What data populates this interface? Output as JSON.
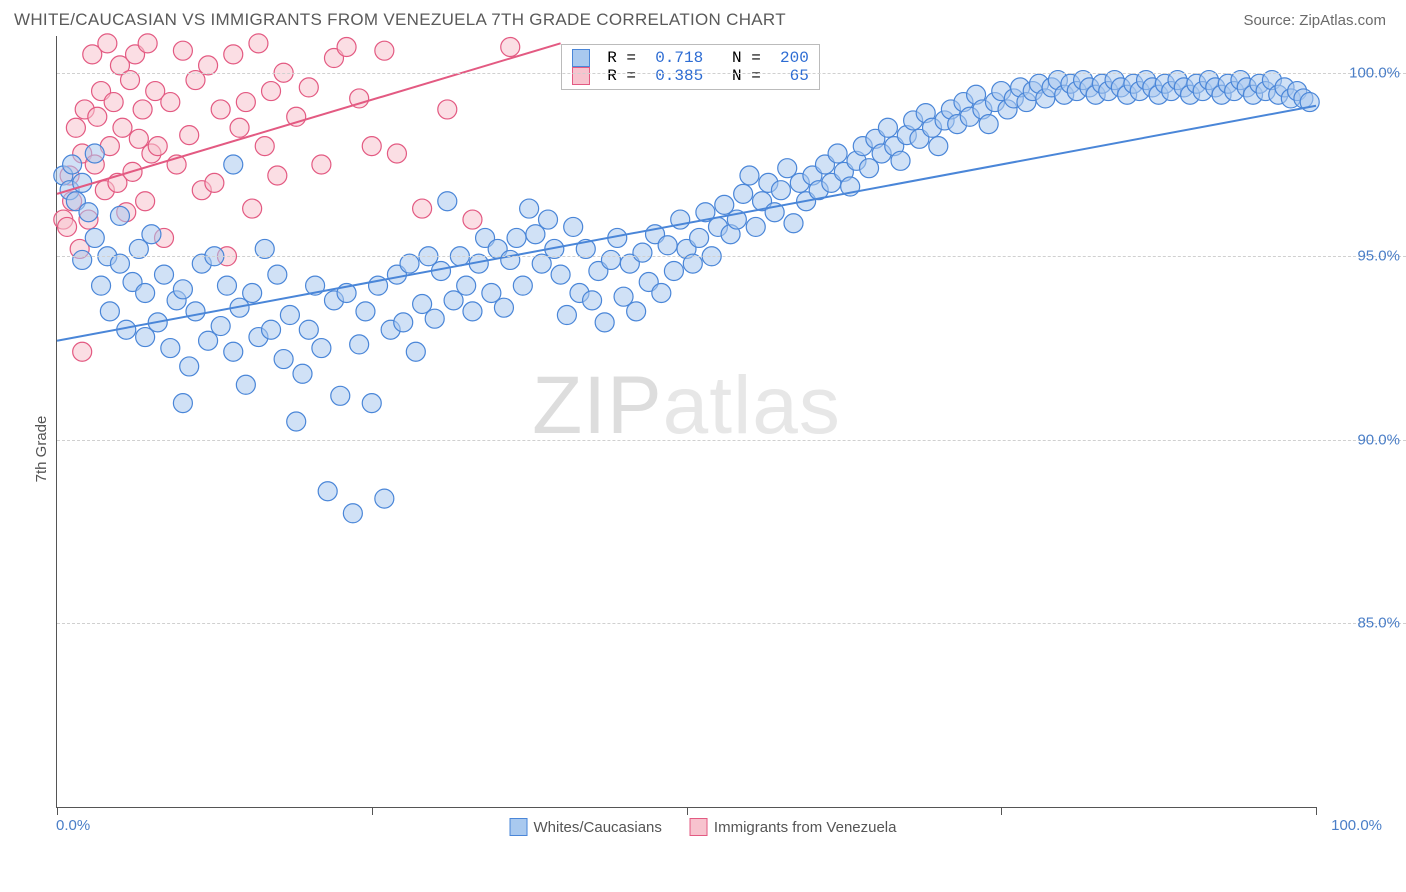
{
  "header": {
    "title": "WHITE/CAUCASIAN VS IMMIGRANTS FROM VENEZUELA 7TH GRADE CORRELATION CHART",
    "source": "Source: ZipAtlas.com"
  },
  "axes": {
    "y_label": "7th Grade",
    "y_ticks": [
      100.0,
      95.0,
      90.0,
      85.0
    ],
    "y_tick_labels": [
      "100.0%",
      "95.0%",
      "90.0%",
      "85.0%"
    ],
    "y_min": 80.0,
    "y_max": 101.0,
    "x_min": 0.0,
    "x_max": 100.0,
    "x_tick_positions": [
      0,
      25,
      50,
      75,
      100
    ],
    "x_left_label": "0.0%",
    "x_right_label": "100.0%"
  },
  "watermark": {
    "zip": "ZIP",
    "atlas": "atlas"
  },
  "legend_bottom": {
    "series1": "Whites/Caucasians",
    "series2": "Immigrants from Venezuela"
  },
  "legend_box": {
    "r_label": "R =",
    "n_label": "N =",
    "rows": [
      {
        "r": "0.718",
        "n": "200"
      },
      {
        "r": "0.385",
        "n": " 65"
      }
    ]
  },
  "styling": {
    "series1_fill": "#a9c9ef",
    "series1_stroke": "#4a86d8",
    "series2_fill": "#f7c3ce",
    "series2_stroke": "#e35a82",
    "marker_radius": 9.5,
    "marker_opacity": 0.55,
    "line_width": 2,
    "background": "#ffffff",
    "grid_color": "#d0d0d0",
    "axis_color": "#555555",
    "tick_label_color": "#4a7ec7",
    "title_color": "#5a5a5a"
  },
  "trend_lines": {
    "series1": {
      "x1": 0,
      "y1": 92.7,
      "x2": 100,
      "y2": 99.1
    },
    "series2": {
      "x1": 0,
      "y1": 96.7,
      "x2": 40,
      "y2": 100.8
    }
  },
  "series1_points": [
    [
      0.5,
      97.2
    ],
    [
      1,
      96.8
    ],
    [
      1.2,
      97.5
    ],
    [
      1.5,
      96.5
    ],
    [
      2,
      97.0
    ],
    [
      2,
      94.9
    ],
    [
      2.5,
      96.2
    ],
    [
      3,
      95.5
    ],
    [
      3,
      97.8
    ],
    [
      3.5,
      94.2
    ],
    [
      4,
      95.0
    ],
    [
      4.2,
      93.5
    ],
    [
      5,
      94.8
    ],
    [
      5,
      96.1
    ],
    [
      5.5,
      93.0
    ],
    [
      6,
      94.3
    ],
    [
      6.5,
      95.2
    ],
    [
      7,
      92.8
    ],
    [
      7,
      94.0
    ],
    [
      7.5,
      95.6
    ],
    [
      8,
      93.2
    ],
    [
      8.5,
      94.5
    ],
    [
      9,
      92.5
    ],
    [
      9.5,
      93.8
    ],
    [
      10,
      91.0
    ],
    [
      10,
      94.1
    ],
    [
      10.5,
      92.0
    ],
    [
      11,
      93.5
    ],
    [
      11.5,
      94.8
    ],
    [
      12,
      92.7
    ],
    [
      12.5,
      95.0
    ],
    [
      13,
      93.1
    ],
    [
      13.5,
      94.2
    ],
    [
      14,
      92.4
    ],
    [
      14,
      97.5
    ],
    [
      14.5,
      93.6
    ],
    [
      15,
      91.5
    ],
    [
      15.5,
      94.0
    ],
    [
      16,
      92.8
    ],
    [
      16.5,
      95.2
    ],
    [
      17,
      93.0
    ],
    [
      17.5,
      94.5
    ],
    [
      18,
      92.2
    ],
    [
      18.5,
      93.4
    ],
    [
      19,
      90.5
    ],
    [
      19.5,
      91.8
    ],
    [
      20,
      93.0
    ],
    [
      20.5,
      94.2
    ],
    [
      21,
      92.5
    ],
    [
      21.5,
      88.6
    ],
    [
      22,
      93.8
    ],
    [
      22.5,
      91.2
    ],
    [
      23,
      94.0
    ],
    [
      23.5,
      88.0
    ],
    [
      24,
      92.6
    ],
    [
      24.5,
      93.5
    ],
    [
      25,
      91.0
    ],
    [
      25.5,
      94.2
    ],
    [
      26,
      88.4
    ],
    [
      26.5,
      93.0
    ],
    [
      27,
      94.5
    ],
    [
      27.5,
      93.2
    ],
    [
      28,
      94.8
    ],
    [
      28.5,
      92.4
    ],
    [
      29,
      93.7
    ],
    [
      29.5,
      95.0
    ],
    [
      30,
      93.3
    ],
    [
      30.5,
      94.6
    ],
    [
      31,
      96.5
    ],
    [
      31.5,
      93.8
    ],
    [
      32,
      95.0
    ],
    [
      32.5,
      94.2
    ],
    [
      33,
      93.5
    ],
    [
      33.5,
      94.8
    ],
    [
      34,
      95.5
    ],
    [
      34.5,
      94.0
    ],
    [
      35,
      95.2
    ],
    [
      35.5,
      93.6
    ],
    [
      36,
      94.9
    ],
    [
      36.5,
      95.5
    ],
    [
      37,
      94.2
    ],
    [
      37.5,
      96.3
    ],
    [
      38,
      95.6
    ],
    [
      38.5,
      94.8
    ],
    [
      39,
      96.0
    ],
    [
      39.5,
      95.2
    ],
    [
      40,
      94.5
    ],
    [
      40.5,
      93.4
    ],
    [
      41,
      95.8
    ],
    [
      41.5,
      94.0
    ],
    [
      42,
      95.2
    ],
    [
      42.5,
      93.8
    ],
    [
      43,
      94.6
    ],
    [
      43.5,
      93.2
    ],
    [
      44,
      94.9
    ],
    [
      44.5,
      95.5
    ],
    [
      45,
      93.9
    ],
    [
      45.5,
      94.8
    ],
    [
      46,
      93.5
    ],
    [
      46.5,
      95.1
    ],
    [
      47,
      94.3
    ],
    [
      47.5,
      95.6
    ],
    [
      48,
      94.0
    ],
    [
      48.5,
      95.3
    ],
    [
      49,
      94.6
    ],
    [
      49.5,
      96.0
    ],
    [
      50,
      95.2
    ],
    [
      50.5,
      94.8
    ],
    [
      51,
      95.5
    ],
    [
      51.5,
      96.2
    ],
    [
      52,
      95.0
    ],
    [
      52.5,
      95.8
    ],
    [
      53,
      96.4
    ],
    [
      53.5,
      95.6
    ],
    [
      54,
      96.0
    ],
    [
      54.5,
      96.7
    ],
    [
      55,
      97.2
    ],
    [
      55.5,
      95.8
    ],
    [
      56,
      96.5
    ],
    [
      56.5,
      97.0
    ],
    [
      57,
      96.2
    ],
    [
      57.5,
      96.8
    ],
    [
      58,
      97.4
    ],
    [
      58.5,
      95.9
    ],
    [
      59,
      97.0
    ],
    [
      59.5,
      96.5
    ],
    [
      60,
      97.2
    ],
    [
      60.5,
      96.8
    ],
    [
      61,
      97.5
    ],
    [
      61.5,
      97.0
    ],
    [
      62,
      97.8
    ],
    [
      62.5,
      97.3
    ],
    [
      63,
      96.9
    ],
    [
      63.5,
      97.6
    ],
    [
      64,
      98.0
    ],
    [
      64.5,
      97.4
    ],
    [
      65,
      98.2
    ],
    [
      65.5,
      97.8
    ],
    [
      66,
      98.5
    ],
    [
      66.5,
      98.0
    ],
    [
      67,
      97.6
    ],
    [
      67.5,
      98.3
    ],
    [
      68,
      98.7
    ],
    [
      68.5,
      98.2
    ],
    [
      69,
      98.9
    ],
    [
      69.5,
      98.5
    ],
    [
      70,
      98.0
    ],
    [
      70.5,
      98.7
    ],
    [
      71,
      99.0
    ],
    [
      71.5,
      98.6
    ],
    [
      72,
      99.2
    ],
    [
      72.5,
      98.8
    ],
    [
      73,
      99.4
    ],
    [
      73.5,
      99.0
    ],
    [
      74,
      98.6
    ],
    [
      74.5,
      99.2
    ],
    [
      75,
      99.5
    ],
    [
      75.5,
      99.0
    ],
    [
      76,
      99.3
    ],
    [
      76.5,
      99.6
    ],
    [
      77,
      99.2
    ],
    [
      77.5,
      99.5
    ],
    [
      78,
      99.7
    ],
    [
      78.5,
      99.3
    ],
    [
      79,
      99.6
    ],
    [
      79.5,
      99.8
    ],
    [
      80,
      99.4
    ],
    [
      80.5,
      99.7
    ],
    [
      81,
      99.5
    ],
    [
      81.5,
      99.8
    ],
    [
      82,
      99.6
    ],
    [
      82.5,
      99.4
    ],
    [
      83,
      99.7
    ],
    [
      83.5,
      99.5
    ],
    [
      84,
      99.8
    ],
    [
      84.5,
      99.6
    ],
    [
      85,
      99.4
    ],
    [
      85.5,
      99.7
    ],
    [
      86,
      99.5
    ],
    [
      86.5,
      99.8
    ],
    [
      87,
      99.6
    ],
    [
      87.5,
      99.4
    ],
    [
      88,
      99.7
    ],
    [
      88.5,
      99.5
    ],
    [
      89,
      99.8
    ],
    [
      89.5,
      99.6
    ],
    [
      90,
      99.4
    ],
    [
      90.5,
      99.7
    ],
    [
      91,
      99.5
    ],
    [
      91.5,
      99.8
    ],
    [
      92,
      99.6
    ],
    [
      92.5,
      99.4
    ],
    [
      93,
      99.7
    ],
    [
      93.5,
      99.5
    ],
    [
      94,
      99.8
    ],
    [
      94.5,
      99.6
    ],
    [
      95,
      99.4
    ],
    [
      95.5,
      99.7
    ],
    [
      96,
      99.5
    ],
    [
      96.5,
      99.8
    ],
    [
      97,
      99.4
    ],
    [
      97.5,
      99.6
    ],
    [
      98,
      99.3
    ],
    [
      98.5,
      99.5
    ],
    [
      99,
      99.3
    ],
    [
      99.5,
      99.2
    ]
  ],
  "series2_points": [
    [
      0.5,
      96.0
    ],
    [
      0.8,
      95.8
    ],
    [
      1,
      97.2
    ],
    [
      1.2,
      96.5
    ],
    [
      1.5,
      98.5
    ],
    [
      1.8,
      95.2
    ],
    [
      2,
      97.8
    ],
    [
      2.2,
      99.0
    ],
    [
      2.5,
      96.0
    ],
    [
      2.8,
      100.5
    ],
    [
      3,
      97.5
    ],
    [
      3.2,
      98.8
    ],
    [
      3.5,
      99.5
    ],
    [
      3.8,
      96.8
    ],
    [
      4,
      100.8
    ],
    [
      4.2,
      98.0
    ],
    [
      4.5,
      99.2
    ],
    [
      4.8,
      97.0
    ],
    [
      5,
      100.2
    ],
    [
      5.2,
      98.5
    ],
    [
      5.5,
      96.2
    ],
    [
      5.8,
      99.8
    ],
    [
      6,
      97.3
    ],
    [
      6.2,
      100.5
    ],
    [
      6.5,
      98.2
    ],
    [
      6.8,
      99.0
    ],
    [
      7,
      96.5
    ],
    [
      7.2,
      100.8
    ],
    [
      7.5,
      97.8
    ],
    [
      7.8,
      99.5
    ],
    [
      8,
      98.0
    ],
    [
      8.5,
      95.5
    ],
    [
      9,
      99.2
    ],
    [
      9.5,
      97.5
    ],
    [
      10,
      100.6
    ],
    [
      10.5,
      98.3
    ],
    [
      11,
      99.8
    ],
    [
      11.5,
      96.8
    ],
    [
      12,
      100.2
    ],
    [
      12.5,
      97.0
    ],
    [
      13,
      99.0
    ],
    [
      13.5,
      95.0
    ],
    [
      14,
      100.5
    ],
    [
      14.5,
      98.5
    ],
    [
      15,
      99.2
    ],
    [
      15.5,
      96.3
    ],
    [
      16,
      100.8
    ],
    [
      16.5,
      98.0
    ],
    [
      17,
      99.5
    ],
    [
      17.5,
      97.2
    ],
    [
      18,
      100.0
    ],
    [
      19,
      98.8
    ],
    [
      20,
      99.6
    ],
    [
      21,
      97.5
    ],
    [
      22,
      100.4
    ],
    [
      23,
      100.7
    ],
    [
      24,
      99.3
    ],
    [
      25,
      98.0
    ],
    [
      26,
      100.6
    ],
    [
      27,
      97.8
    ],
    [
      29,
      96.3
    ],
    [
      31,
      99.0
    ],
    [
      33,
      96.0
    ],
    [
      36,
      100.7
    ],
    [
      2,
      92.4
    ]
  ]
}
